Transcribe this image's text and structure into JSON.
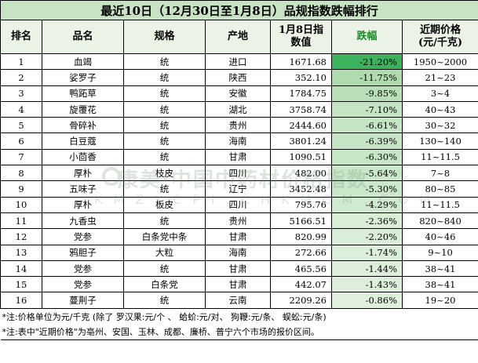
{
  "title": "最近10日（12月30日至1月8日）品规指数跌幅排行",
  "headers": {
    "rank": "排名",
    "name": "品名",
    "spec": "规格",
    "origin": "产地",
    "index_line1": "1月8日指",
    "index_line2": "数值",
    "fluct": "跌幅",
    "price_line1": "近期价格",
    "price_line2": "(元/千克)"
  },
  "rows": [
    {
      "rank": "1",
      "name": "血竭",
      "spec": "统",
      "origin": "进口",
      "index": "1671.68",
      "fluct": "-21.20%",
      "price": "1950~2000",
      "fluct_value": -21.2
    },
    {
      "rank": "2",
      "name": "娑罗子",
      "spec": "统",
      "origin": "陕西",
      "index": "352.10",
      "fluct": "-11.75%",
      "price": "21~23",
      "fluct_value": -11.75
    },
    {
      "rank": "3",
      "name": "鸭跖草",
      "spec": "统",
      "origin": "安徽",
      "index": "1784.75",
      "fluct": "-9.85%",
      "price": "3~4",
      "fluct_value": -9.85
    },
    {
      "rank": "4",
      "name": "旋覆花",
      "spec": "统",
      "origin": "湖北",
      "index": "3758.74",
      "fluct": "-7.10%",
      "price": "40~43",
      "fluct_value": -7.1
    },
    {
      "rank": "5",
      "name": "骨碎补",
      "spec": "统",
      "origin": "贵州",
      "index": "2444.60",
      "fluct": "-6.61%",
      "price": "30~32",
      "fluct_value": -6.61
    },
    {
      "rank": "6",
      "name": "白豆蔻",
      "spec": "统",
      "origin": "海南",
      "index": "3801.24",
      "fluct": "-6.39%",
      "price": "130~140",
      "fluct_value": -6.39
    },
    {
      "rank": "7",
      "name": "小茴香",
      "spec": "统",
      "origin": "甘肃",
      "index": "1090.51",
      "fluct": "-6.30%",
      "price": "11~11.5",
      "fluct_value": -6.3
    },
    {
      "rank": "8",
      "name": "厚朴",
      "spec": "枝皮",
      "origin": "四川",
      "index": "482.00",
      "fluct": "-5.64%",
      "price": "7~8",
      "fluct_value": -5.64
    },
    {
      "rank": "9",
      "name": "五味子",
      "spec": "统",
      "origin": "辽宁",
      "index": "3452.48",
      "fluct": "-5.30%",
      "price": "80~85",
      "fluct_value": -5.3
    },
    {
      "rank": "10",
      "name": "厚朴",
      "spec": "板皮",
      "origin": "四川",
      "index": "795.76",
      "fluct": "-4.29%",
      "price": "11~11.5",
      "fluct_value": -4.29
    },
    {
      "rank": "11",
      "name": "九香虫",
      "spec": "统",
      "origin": "贵州",
      "index": "5166.51",
      "fluct": "-2.36%",
      "price": "820~840",
      "fluct_value": -2.36
    },
    {
      "rank": "12",
      "name": "党参",
      "spec": "白条党中条",
      "origin": "甘肃",
      "index": "820.99",
      "fluct": "-2.20%",
      "price": "40~46",
      "fluct_value": -2.2
    },
    {
      "rank": "13",
      "name": "鸦胆子",
      "spec": "大粒",
      "origin": "海南",
      "index": "272.66",
      "fluct": "-1.74%",
      "price": "9~10",
      "fluct_value": -1.74
    },
    {
      "rank": "14",
      "name": "党参",
      "spec": "统",
      "origin": "甘肃",
      "index": "465.56",
      "fluct": "-1.44%",
      "price": "38~41",
      "fluct_value": -1.44
    },
    {
      "rank": "15",
      "name": "党参",
      "spec": "白条党",
      "origin": "甘肃",
      "index": "442.07",
      "fluct": "-1.43%",
      "price": "38~41",
      "fluct_value": -1.43
    },
    {
      "rank": "16",
      "name": "蔓荆子",
      "spec": "统",
      "origin": "云南",
      "index": "2209.26",
      "fluct": "-0.86%",
      "price": "19~20",
      "fluct_value": -0.86
    }
  ],
  "notes": [
    "*注:价格单位为元/千克 (除了 罗汉果:元/个 、 蛤蚧:元/对、 狗鞭:元/条、 蜈蚣:元/条)",
    "*注:表中\"近期价格\"为亳州、安国、玉林、成都、廉桥、普宁六个市场的报价区间。"
  ],
  "watermark": {
    "line1": "康美·中国中药材价格指数",
    "line2": "KMZYCPI.CHKMCM.COM"
  },
  "colors": {
    "title_bg": "#c8e3c4",
    "header_bg": "#ebf3e7",
    "fluct_header": "#1e8a2e",
    "gradient_strong": "#3db25c",
    "gradient_light": "#e3f2e1"
  }
}
